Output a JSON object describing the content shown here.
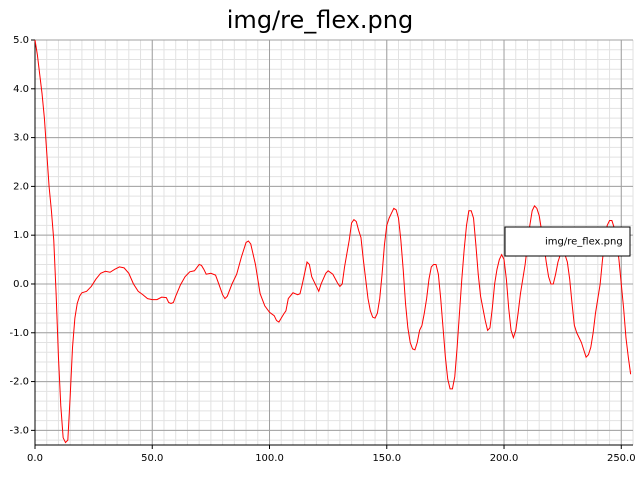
{
  "chart_data": {
    "type": "line",
    "title": "img/re_flex.png",
    "x": [
      0,
      1,
      2,
      3,
      4,
      5,
      6,
      7,
      8,
      9,
      10,
      11,
      12,
      13,
      14,
      15,
      16,
      17,
      18,
      19,
      20,
      22,
      24,
      26,
      28,
      30,
      32,
      34,
      36,
      38,
      40,
      42,
      44,
      46,
      48,
      50,
      52,
      54,
      56,
      57,
      58,
      59,
      60,
      62,
      64,
      66,
      68,
      70,
      71,
      72,
      73,
      75,
      77,
      78,
      80,
      81,
      82,
      84,
      86,
      88,
      90,
      91,
      92,
      94,
      96,
      98,
      100,
      102,
      103,
      104,
      106,
      107,
      108,
      110,
      112,
      113,
      114,
      116,
      117,
      118,
      120,
      121,
      122,
      124,
      125,
      127,
      129,
      130,
      131,
      132,
      134,
      135,
      136,
      137,
      138,
      139,
      140,
      141,
      142,
      143,
      144,
      145,
      146,
      147,
      148,
      149,
      150,
      151,
      152,
      153,
      154,
      155,
      156,
      157,
      158,
      159,
      160,
      161,
      162,
      163,
      164,
      165,
      166,
      167,
      168,
      169,
      170,
      171,
      172,
      173,
      174,
      175,
      176,
      177,
      178,
      179,
      180,
      181,
      182,
      183,
      184,
      185,
      186,
      187,
      188,
      189,
      190,
      191,
      192,
      193,
      194,
      195,
      196,
      197,
      198,
      199,
      200,
      201,
      202,
      203,
      204,
      205,
      206,
      207,
      208,
      209,
      210,
      211,
      212,
      213,
      214,
      215,
      216,
      217,
      218,
      219,
      220,
      221,
      222,
      223,
      224,
      225,
      226,
      227,
      228,
      229,
      230,
      231,
      232,
      233,
      234,
      235,
      236,
      237,
      238,
      239,
      240,
      241,
      242,
      243,
      244,
      245,
      246,
      247,
      248,
      249,
      250,
      251,
      252,
      253,
      254
    ],
    "series": [
      {
        "name": "img/re_flex.png",
        "color": "#ff0000",
        "values": [
          5.0,
          4.7,
          4.3,
          3.9,
          3.4,
          2.7,
          2.0,
          1.5,
          0.9,
          -0.2,
          -1.5,
          -2.5,
          -3.15,
          -3.25,
          -3.2,
          -2.3,
          -1.3,
          -0.7,
          -0.4,
          -0.25,
          -0.18,
          -0.15,
          -0.05,
          0.1,
          0.22,
          0.26,
          0.24,
          0.3,
          0.35,
          0.33,
          0.22,
          0.0,
          -0.15,
          -0.22,
          -0.3,
          -0.32,
          -0.32,
          -0.27,
          -0.28,
          -0.38,
          -0.4,
          -0.38,
          -0.25,
          -0.02,
          0.15,
          0.25,
          0.27,
          0.4,
          0.38,
          0.3,
          0.2,
          0.22,
          0.18,
          0.05,
          -0.22,
          -0.3,
          -0.25,
          0.0,
          0.2,
          0.55,
          0.85,
          0.88,
          0.82,
          0.4,
          -0.2,
          -0.45,
          -0.58,
          -0.65,
          -0.75,
          -0.78,
          -0.62,
          -0.55,
          -0.3,
          -0.18,
          -0.22,
          -0.2,
          0.0,
          0.45,
          0.4,
          0.15,
          -0.05,
          -0.15,
          0.0,
          0.22,
          0.27,
          0.2,
          0.02,
          -0.05,
          0.0,
          0.35,
          0.9,
          1.25,
          1.32,
          1.28,
          1.1,
          0.95,
          0.5,
          0.1,
          -0.3,
          -0.55,
          -0.68,
          -0.7,
          -0.6,
          -0.3,
          0.2,
          0.8,
          1.2,
          1.35,
          1.45,
          1.55,
          1.52,
          1.35,
          0.9,
          0.3,
          -0.4,
          -0.9,
          -1.2,
          -1.33,
          -1.35,
          -1.2,
          -0.95,
          -0.85,
          -0.6,
          -0.3,
          0.1,
          0.35,
          0.4,
          0.4,
          0.2,
          -0.3,
          -0.9,
          -1.5,
          -1.95,
          -2.15,
          -2.15,
          -1.9,
          -1.3,
          -0.6,
          0.1,
          0.7,
          1.2,
          1.5,
          1.5,
          1.35,
          0.8,
          0.2,
          -0.25,
          -0.5,
          -0.75,
          -0.95,
          -0.9,
          -0.5,
          0.0,
          0.3,
          0.5,
          0.6,
          0.5,
          0.1,
          -0.5,
          -0.95,
          -1.1,
          -0.95,
          -0.6,
          -0.2,
          0.1,
          0.4,
          0.8,
          1.2,
          1.5,
          1.6,
          1.55,
          1.4,
          1.1,
          0.8,
          0.45,
          0.15,
          0.0,
          0.0,
          0.2,
          0.45,
          0.6,
          0.62,
          0.6,
          0.45,
          0.1,
          -0.4,
          -0.85,
          -1.0,
          -1.1,
          -1.2,
          -1.35,
          -1.5,
          -1.45,
          -1.3,
          -1.0,
          -0.6,
          -0.3,
          0.0,
          0.5,
          0.9,
          1.2,
          1.3,
          1.3,
          1.15,
          0.9,
          0.5,
          0.0,
          -0.5,
          -1.1,
          -1.5,
          -1.85
        ]
      }
    ],
    "xlim": [
      0,
      255
    ],
    "ylim": [
      -3.3,
      5.0
    ],
    "xticks": [
      {
        "value": 0,
        "label": "0.0"
      },
      {
        "value": 50,
        "label": "50.0"
      },
      {
        "value": 100,
        "label": "100.0"
      },
      {
        "value": 150,
        "label": "150.0"
      },
      {
        "value": 200,
        "label": "200.0"
      },
      {
        "value": 250,
        "label": "250.0"
      }
    ],
    "yticks": [
      {
        "value": -3,
        "label": "-3.0"
      },
      {
        "value": -2,
        "label": "-2.0"
      },
      {
        "value": -1,
        "label": "-1.0"
      },
      {
        "value": 0,
        "label": "0.0"
      },
      {
        "value": 1,
        "label": "1.0"
      },
      {
        "value": 2,
        "label": "2.0"
      },
      {
        "value": 3,
        "label": "3.0"
      },
      {
        "value": 4,
        "label": "4.0"
      },
      {
        "value": 5,
        "label": "5.0"
      }
    ],
    "grid": true,
    "legend": "right"
  }
}
